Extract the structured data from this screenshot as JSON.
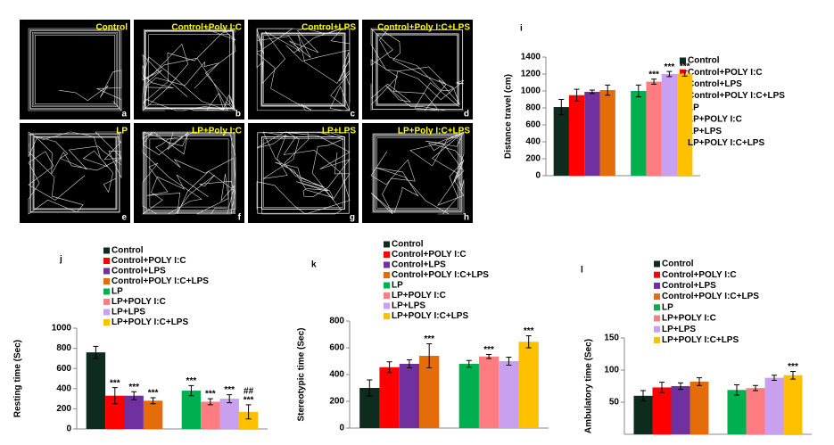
{
  "track_panels": [
    {
      "label": "Control",
      "letter": "a"
    },
    {
      "label": "Control+Poly I:C",
      "letter": "b"
    },
    {
      "label": "Control+LPS",
      "letter": "c"
    },
    {
      "label": "Control+Poly I:C+LPS",
      "letter": "d"
    },
    {
      "label": "LP",
      "letter": "e"
    },
    {
      "label": "LP+Poly I:C",
      "letter": "f"
    },
    {
      "label": "LP+LPS",
      "letter": "g"
    },
    {
      "label": "LP+Poly I:C+LPS",
      "letter": "h"
    }
  ],
  "chart_data": [
    {
      "type": "bar",
      "panel_label": "i",
      "ylabel": "Distance travel (cm)",
      "ylim": [
        0,
        1400
      ],
      "yticks": [
        0,
        200,
        400,
        600,
        800,
        1000,
        1200,
        1400
      ],
      "series": [
        {
          "name": "Control",
          "color": "#0d2b1e",
          "values": [
            810
          ],
          "errors": [
            90
          ]
        },
        {
          "name": "Control+POLY I:C",
          "color": "#ff0000",
          "values": [
            950
          ],
          "errors": [
            70
          ]
        },
        {
          "name": "Control+LPS",
          "color": "#7030a0",
          "values": [
            990
          ],
          "errors": [
            20
          ]
        },
        {
          "name": "Control+POLY I:C+LPS",
          "color": "#e46c0a",
          "values": [
            1010
          ],
          "errors": [
            60
          ]
        },
        {
          "name": "LP",
          "color": "#00b050",
          "values": [
            1000
          ],
          "errors": [
            70
          ]
        },
        {
          "name": "LP+POLY I:C",
          "color": "#ff7c80",
          "values": [
            1110
          ],
          "errors": [
            30
          ],
          "annotations": [
            "***"
          ]
        },
        {
          "name": "LP+LPS",
          "color": "#c9a0f0",
          "values": [
            1200
          ],
          "errors": [
            30
          ],
          "annotations": [
            "***"
          ]
        },
        {
          "name": "LP+POLY I:C+LPS",
          "color": "#ffc000",
          "values": [
            1205
          ],
          "errors": [
            30
          ],
          "annotations": [
            "***"
          ]
        }
      ]
    },
    {
      "type": "bar",
      "panel_label": "j",
      "ylabel": "Resting time (Sec)",
      "ylim": [
        0,
        1000
      ],
      "yticks": [
        0,
        200,
        400,
        600,
        800,
        1000
      ],
      "series": [
        {
          "name": "Control",
          "color": "#0d2b1e",
          "values": [
            760
          ],
          "errors": [
            60
          ]
        },
        {
          "name": "Control+POLY I:C",
          "color": "#ff0000",
          "values": [
            330
          ],
          "errors": [
            80
          ],
          "annotations": [
            "***"
          ]
        },
        {
          "name": "Control+LPS",
          "color": "#7030a0",
          "values": [
            330
          ],
          "errors": [
            40
          ],
          "annotations": [
            "***"
          ]
        },
        {
          "name": "Control+POLY I:C+LPS",
          "color": "#e46c0a",
          "values": [
            280
          ],
          "errors": [
            30
          ],
          "annotations": [
            "***"
          ]
        },
        {
          "name": "LP",
          "color": "#00b050",
          "values": [
            380
          ],
          "errors": [
            50
          ],
          "annotations": [
            "***"
          ]
        },
        {
          "name": "LP+POLY I:C",
          "color": "#ff7c80",
          "values": [
            270
          ],
          "errors": [
            30
          ],
          "annotations": [
            "***"
          ]
        },
        {
          "name": "LP+LPS",
          "color": "#c9a0f0",
          "values": [
            300
          ],
          "errors": [
            40
          ],
          "annotations": [
            "***"
          ]
        },
        {
          "name": "LP+POLY I:C+LPS",
          "color": "#ffc000",
          "values": [
            170
          ],
          "errors": [
            70
          ],
          "annotations": [
            "***",
            "##"
          ]
        }
      ]
    },
    {
      "type": "bar",
      "panel_label": "k",
      "ylabel": "Stereotypic time (Sec)",
      "ylim": [
        0,
        800
      ],
      "yticks": [
        0,
        200,
        400,
        600,
        800
      ],
      "series": [
        {
          "name": "Control",
          "color": "#0d2b1e",
          "values": [
            300
          ],
          "errors": [
            60
          ]
        },
        {
          "name": "Control+POLY I:C",
          "color": "#ff0000",
          "values": [
            455
          ],
          "errors": [
            40
          ]
        },
        {
          "name": "Control+LPS",
          "color": "#7030a0",
          "values": [
            480
          ],
          "errors": [
            30
          ]
        },
        {
          "name": "Control+POLY I:C+LPS",
          "color": "#e46c0a",
          "values": [
            540
          ],
          "errors": [
            90
          ],
          "annotations": [
            "***"
          ]
        },
        {
          "name": "LP",
          "color": "#00b050",
          "values": [
            480
          ],
          "errors": [
            25
          ]
        },
        {
          "name": "LP+POLY I:C",
          "color": "#ff7c80",
          "values": [
            535
          ],
          "errors": [
            15
          ],
          "annotations": [
            "***"
          ]
        },
        {
          "name": "LP+LPS",
          "color": "#c9a0f0",
          "values": [
            500
          ],
          "errors": [
            30
          ]
        },
        {
          "name": "LP+POLY I:C+LPS",
          "color": "#ffc000",
          "values": [
            645
          ],
          "errors": [
            45
          ],
          "annotations": [
            "***"
          ]
        }
      ]
    },
    {
      "type": "bar",
      "panel_label": "l",
      "ylabel": "Ambulatory time (Sec)",
      "ylim": [
        0,
        150
      ],
      "yticks": [
        50,
        100,
        150
      ],
      "series": [
        {
          "name": "Control",
          "color": "#0d2b1e",
          "values": [
            60
          ],
          "errors": [
            8
          ]
        },
        {
          "name": "Control+POLY I:C",
          "color": "#ff0000",
          "values": [
            73
          ],
          "errors": [
            8
          ]
        },
        {
          "name": "Control+LPS",
          "color": "#7030a0",
          "values": [
            75
          ],
          "errors": [
            5
          ]
        },
        {
          "name": "Control+POLY I:C+LPS",
          "color": "#e46c0a",
          "values": [
            82
          ],
          "errors": [
            6
          ]
        },
        {
          "name": "LP",
          "color": "#00b050",
          "values": [
            69
          ],
          "errors": [
            8
          ]
        },
        {
          "name": "LP+POLY I:C",
          "color": "#ff7c80",
          "values": [
            72
          ],
          "errors": [
            4
          ]
        },
        {
          "name": "LP+LPS",
          "color": "#c9a0f0",
          "values": [
            88
          ],
          "errors": [
            4
          ]
        },
        {
          "name": "LP+POLY I:C+LPS",
          "color": "#ffc000",
          "values": [
            92
          ],
          "errors": [
            6
          ],
          "annotations": [
            "***"
          ]
        }
      ]
    }
  ]
}
